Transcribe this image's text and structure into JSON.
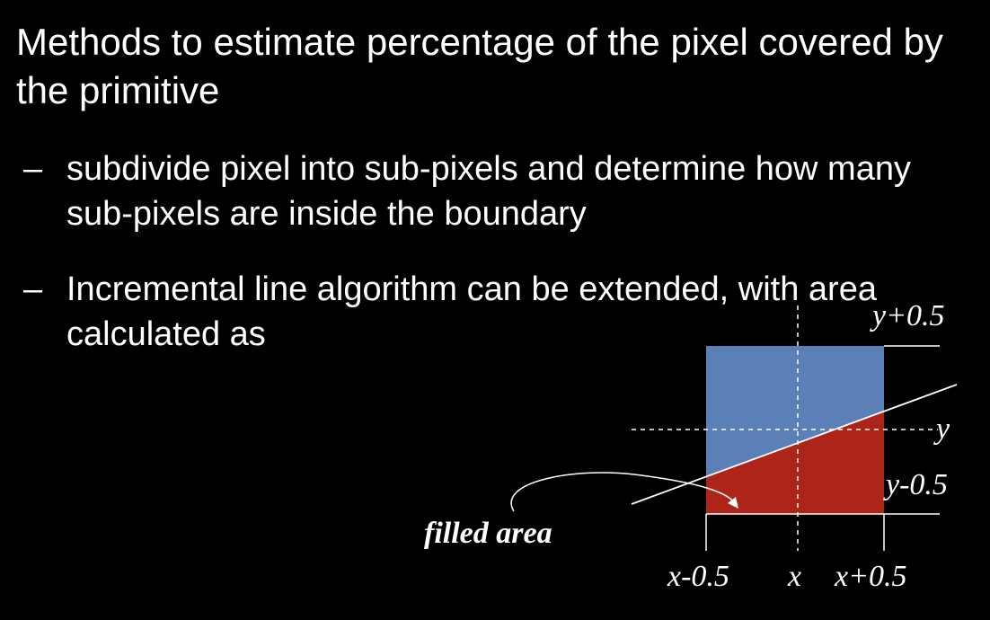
{
  "slide": {
    "title": "Methods to estimate percentage of the pixel covered by the primitive",
    "bullets": [
      {
        "dash": "–",
        "text": "subdivide pixel into sub-pixels and determine how many sub-pixels are inside the boundary"
      },
      {
        "dash": "–",
        "text": "Incremental line algorithm can be extended, with area calculated as"
      }
    ]
  },
  "diagram": {
    "labels": {
      "y_plus": "y+0.5",
      "y": "y",
      "y_minus": "y-0.5",
      "x_minus": "x-0.5",
      "x": "x",
      "x_plus": "x+0.5",
      "filled_area": "filled area"
    },
    "colors": {
      "background": "#000000",
      "uncovered": "#5b80b8",
      "filled": "#ad2419",
      "lines": "#ffffff"
    }
  }
}
